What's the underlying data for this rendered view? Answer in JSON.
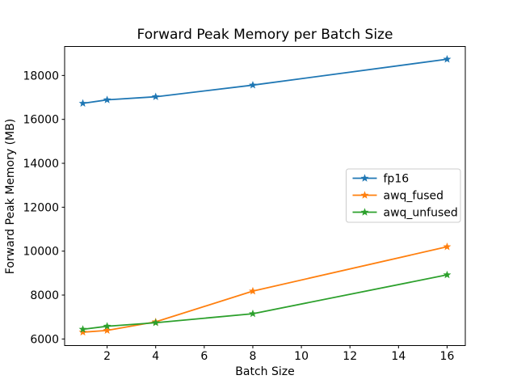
{
  "figure": {
    "background": "#ffffff",
    "axes_color": "#000000",
    "legend_border_color": "#cccccc",
    "legend_background": "#ffffff"
  },
  "chart_data": {
    "type": "line",
    "title": "Forward Peak Memory per Batch Size",
    "xlabel": "Batch Size",
    "ylabel": "Forward Peak Memory (MB)",
    "x": [
      1,
      2,
      4,
      8,
      16
    ],
    "series": [
      {
        "name": "fp16",
        "color": "#1f77b4",
        "values": [
          16730,
          16890,
          17030,
          17560,
          18740
        ]
      },
      {
        "name": "awq_fused",
        "color": "#ff7f0e",
        "values": [
          6310,
          6390,
          6780,
          8180,
          10200
        ]
      },
      {
        "name": "awq_unfused",
        "color": "#2ca02c",
        "values": [
          6440,
          6580,
          6740,
          7150,
          8920
        ]
      }
    ],
    "xlim": [
      0.25,
      16.75
    ],
    "ylim": [
      5700,
      19320
    ],
    "xticks": [
      2,
      4,
      6,
      8,
      10,
      12,
      14,
      16
    ],
    "yticks": [
      6000,
      8000,
      10000,
      12000,
      14000,
      16000,
      18000
    ],
    "grid": false,
    "marker": "star",
    "legend_position": "center-right"
  }
}
